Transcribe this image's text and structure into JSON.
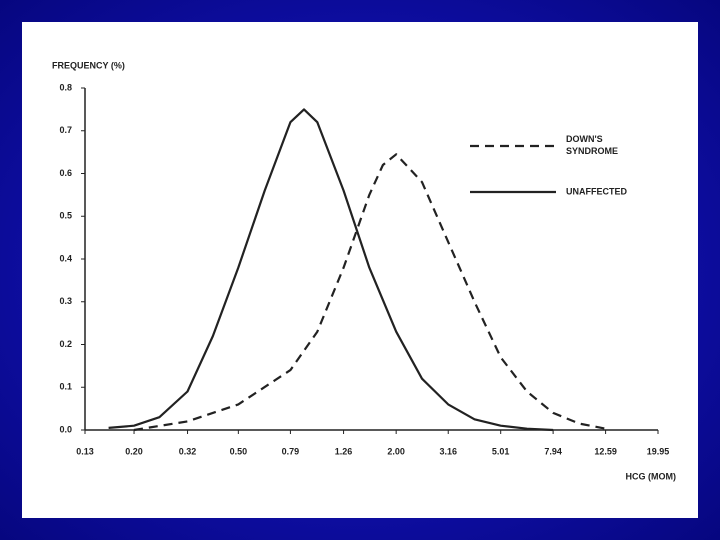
{
  "chart_data": {
    "type": "line",
    "ylabel": "FREQUENCY (%)",
    "xlabel": "HCG (MOM)",
    "xscale": "log",
    "xlim": [
      0.13,
      19.95
    ],
    "xticks": [
      0.13,
      {
        "value": 0.2,
        "label": "0.20"
      },
      0.32,
      {
        "value": 0.5,
        "label": "0.50"
      },
      0.79,
      1.26,
      {
        "value": 2,
        "label": "2.00"
      },
      3.16,
      5.01,
      7.94,
      12.59,
      19.95
    ],
    "ylim": [
      0,
      0.8
    ],
    "yticks": [
      {
        "value": 0,
        "label": "0.0"
      },
      0.1,
      0.2,
      0.3,
      0.4,
      0.5,
      0.6,
      0.7,
      0.8
    ],
    "series": [
      {
        "name": "DOWN'S SYNDROME",
        "color": "#222222",
        "dash": true,
        "x": [
          0.2,
          0.32,
          0.5,
          0.79,
          1.0,
          1.26,
          1.58,
          1.78,
          2.0,
          2.51,
          3.16,
          3.98,
          5.01,
          6.31,
          7.94,
          10,
          12.59
        ],
        "values": [
          0,
          0.02,
          0.06,
          0.14,
          0.23,
          0.38,
          0.55,
          0.62,
          0.645,
          0.58,
          0.44,
          0.3,
          0.17,
          0.09,
          0.04,
          0.015,
          0.003
        ]
      },
      {
        "name": "UNAFFECTED",
        "color": "#222222",
        "dash": false,
        "x": [
          0.16,
          0.2,
          0.25,
          0.32,
          0.4,
          0.5,
          0.63,
          0.79,
          0.89,
          1.0,
          1.26,
          1.58,
          2.0,
          2.51,
          3.16,
          3.98,
          5.01,
          6.31,
          7.94
        ],
        "values": [
          0.005,
          0.01,
          0.03,
          0.09,
          0.22,
          0.38,
          0.56,
          0.72,
          0.75,
          0.72,
          0.56,
          0.38,
          0.23,
          0.12,
          0.06,
          0.025,
          0.01,
          0.003,
          0
        ]
      }
    ]
  }
}
